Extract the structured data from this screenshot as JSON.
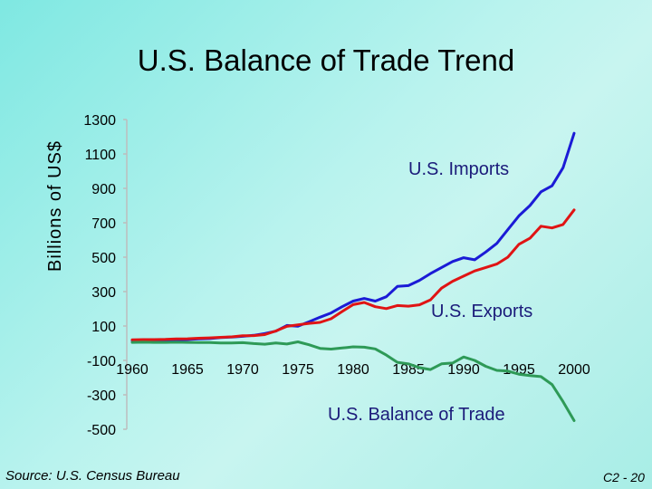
{
  "slide": {
    "title": "U.S. Balance of Trade Trend",
    "source": "Source: U.S. Census Bureau",
    "slide_number": "C2 - 20"
  },
  "chart_data": {
    "type": "line",
    "ylabel": "Billions of US$",
    "xlabel": "",
    "xlim": [
      1960,
      2000
    ],
    "ylim": [
      -500,
      1300
    ],
    "x_ticks": [
      1960,
      1965,
      1970,
      1975,
      1980,
      1985,
      1990,
      1995,
      2000
    ],
    "y_ticks": [
      1300,
      1100,
      900,
      700,
      500,
      300,
      100,
      -100,
      -300,
      -500
    ],
    "grid": false,
    "x": [
      1960,
      1961,
      1962,
      1963,
      1964,
      1965,
      1966,
      1967,
      1968,
      1969,
      1970,
      1971,
      1972,
      1973,
      1974,
      1975,
      1976,
      1977,
      1978,
      1979,
      1980,
      1981,
      1982,
      1983,
      1984,
      1985,
      1986,
      1987,
      1988,
      1989,
      1990,
      1991,
      1992,
      1993,
      1994,
      1995,
      1996,
      1997,
      1998,
      1999,
      2000
    ],
    "series": [
      {
        "name": "U.S. Imports",
        "color": "#1b1bd6",
        "values": [
          15,
          15,
          16,
          17,
          19,
          21,
          25,
          27,
          33,
          36,
          40,
          46,
          56,
          70,
          103,
          99,
          124,
          151,
          176,
          212,
          245,
          260,
          245,
          270,
          330,
          335,
          365,
          405,
          440,
          475,
          497,
          485,
          530,
          580,
          660,
          740,
          800,
          880,
          915,
          1020,
          1220
        ]
      },
      {
        "name": "U.S. Exports",
        "color": "#e01414",
        "values": [
          20,
          21,
          21,
          22,
          25,
          26,
          29,
          31,
          34,
          37,
          43,
          44,
          50,
          71,
          98,
          107,
          115,
          121,
          142,
          184,
          224,
          237,
          212,
          201,
          219,
          215,
          223,
          252,
          320,
          360,
          390,
          420,
          440,
          460,
          500,
          575,
          610,
          680,
          670,
          690,
          775
        ]
      },
      {
        "name": "U.S. Balance of Trade",
        "color": "#2e9a57",
        "values": [
          5,
          6,
          5,
          5,
          6,
          5,
          4,
          4,
          1,
          1,
          3,
          -2,
          -6,
          1,
          -5,
          8,
          -9,
          -30,
          -34,
          -28,
          -21,
          -23,
          -33,
          -69,
          -111,
          -120,
          -142,
          -153,
          -120,
          -115,
          -80,
          -100,
          -134,
          -158,
          -162,
          -180,
          -188,
          -194,
          -240,
          -340,
          -450
        ]
      }
    ],
    "annotations": [
      "U.S. Imports",
      "U.S. Exports",
      "U.S. Balance of Trade"
    ]
  }
}
